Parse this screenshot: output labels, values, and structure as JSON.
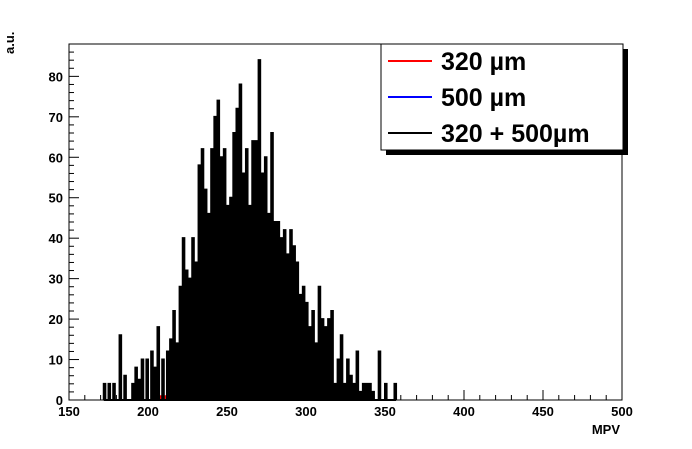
{
  "chart_data": {
    "type": "histogram",
    "title": "",
    "xlabel": "MPV",
    "ylabel": "a.u.",
    "xlim": [
      150,
      500
    ],
    "ylim": [
      0,
      88
    ],
    "x_ticks": [
      150,
      200,
      250,
      300,
      350,
      400,
      450,
      500
    ],
    "y_ticks": [
      0,
      10,
      20,
      30,
      40,
      50,
      60,
      70,
      80
    ],
    "grid": false,
    "legend_position": "top-right",
    "bin_width": 1,
    "series": [
      {
        "name": "320 µm",
        "color": "#ff0000",
        "bins": [
          [
            208,
            1
          ],
          [
            211,
            1
          ],
          [
            226,
            1
          ],
          [
            255,
            1
          ],
          [
            271,
            1
          ],
          [
            296,
            1
          ],
          [
            305,
            1
          ]
        ]
      },
      {
        "name": "500 µm",
        "color": "#0000ff",
        "bins": []
      },
      {
        "name": "320 + 500µm",
        "color": "#000000",
        "bins": [
          [
            172,
            4
          ],
          [
            175,
            4
          ],
          [
            178,
            4
          ],
          [
            182,
            16
          ],
          [
            185,
            6
          ],
          [
            190,
            4
          ],
          [
            192,
            8
          ],
          [
            194,
            5
          ],
          [
            196,
            10
          ],
          [
            199,
            10
          ],
          [
            202,
            12
          ],
          [
            204,
            8
          ],
          [
            206,
            18
          ],
          [
            209,
            10
          ],
          [
            212,
            12
          ],
          [
            214,
            15
          ],
          [
            216,
            22
          ],
          [
            218,
            14
          ],
          [
            220,
            28
          ],
          [
            222,
            40
          ],
          [
            224,
            32
          ],
          [
            226,
            30
          ],
          [
            228,
            40
          ],
          [
            230,
            34
          ],
          [
            232,
            58
          ],
          [
            234,
            62
          ],
          [
            236,
            52
          ],
          [
            238,
            46
          ],
          [
            240,
            62
          ],
          [
            242,
            70
          ],
          [
            244,
            74
          ],
          [
            246,
            60
          ],
          [
            248,
            62
          ],
          [
            250,
            48
          ],
          [
            252,
            50
          ],
          [
            254,
            66
          ],
          [
            256,
            72
          ],
          [
            258,
            78
          ],
          [
            260,
            56
          ],
          [
            262,
            62
          ],
          [
            264,
            48
          ],
          [
            266,
            64
          ],
          [
            268,
            64
          ],
          [
            270,
            84
          ],
          [
            272,
            56
          ],
          [
            274,
            60
          ],
          [
            276,
            46
          ],
          [
            278,
            66
          ],
          [
            280,
            44
          ],
          [
            282,
            44
          ],
          [
            284,
            40
          ],
          [
            286,
            42
          ],
          [
            288,
            36
          ],
          [
            290,
            42
          ],
          [
            292,
            38
          ],
          [
            294,
            34
          ],
          [
            296,
            26
          ],
          [
            298,
            28
          ],
          [
            300,
            24
          ],
          [
            302,
            18
          ],
          [
            304,
            22
          ],
          [
            306,
            14
          ],
          [
            308,
            28
          ],
          [
            310,
            20
          ],
          [
            312,
            18
          ],
          [
            314,
            20
          ],
          [
            316,
            22
          ],
          [
            318,
            4
          ],
          [
            320,
            10
          ],
          [
            322,
            16
          ],
          [
            324,
            4
          ],
          [
            326,
            10
          ],
          [
            328,
            6
          ],
          [
            330,
            4
          ],
          [
            332,
            12
          ],
          [
            334,
            2
          ],
          [
            336,
            4
          ],
          [
            338,
            4
          ],
          [
            340,
            4
          ],
          [
            342,
            2
          ],
          [
            346,
            12
          ],
          [
            350,
            4
          ],
          [
            356,
            4
          ]
        ]
      }
    ]
  }
}
